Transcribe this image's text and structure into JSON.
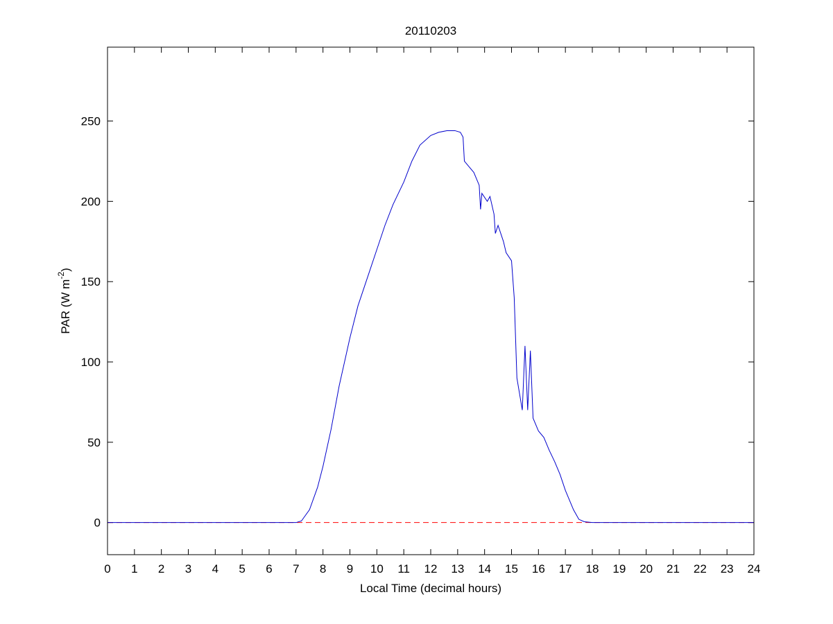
{
  "chart_data": {
    "type": "line",
    "title": "20110203",
    "xlabel": "Local Time (decimal hours)",
    "ylabel": {
      "text": "PAR (W m",
      "superscript": "-2",
      "suffix": ")"
    },
    "xlim": [
      0,
      24
    ],
    "ylim": [
      -20,
      296
    ],
    "xticks": [
      0,
      1,
      2,
      3,
      4,
      5,
      6,
      7,
      8,
      9,
      10,
      11,
      12,
      13,
      14,
      15,
      16,
      17,
      18,
      19,
      20,
      21,
      22,
      23,
      24
    ],
    "yticks": [
      0,
      50,
      100,
      150,
      200,
      250
    ],
    "grid": false,
    "x": [
      0,
      7,
      7.2,
      7.5,
      7.8,
      8,
      8.3,
      8.6,
      9,
      9.3,
      9.5,
      9.8,
      10,
      10.3,
      10.6,
      11,
      11.3,
      11.6,
      12,
      12.3,
      12.6,
      12.9,
      13.1,
      13.2,
      13.25,
      13.4,
      13.6,
      13.8,
      13.85,
      13.9,
      14.1,
      14.2,
      14.35,
      14.4,
      14.5,
      14.7,
      14.8,
      15,
      15.1,
      15.2,
      15.3,
      15.4,
      15.5,
      15.6,
      15.7,
      15.8,
      16,
      16.2,
      16.4,
      16.6,
      16.8,
      17,
      17.3,
      17.5,
      17.7,
      18,
      24
    ],
    "series": [
      {
        "color": "#0000cc",
        "values": [
          0,
          0,
          1,
          8,
          22,
          35,
          58,
          85,
          115,
          135,
          145,
          160,
          170,
          185,
          198,
          212,
          225,
          235,
          241,
          243,
          244,
          244,
          243,
          240,
          225,
          222,
          218,
          210,
          195,
          205,
          200,
          203,
          192,
          180,
          185,
          175,
          168,
          163,
          140,
          90,
          80,
          70,
          110,
          70,
          107,
          65,
          57,
          53,
          45,
          38,
          30,
          20,
          8,
          2,
          0.5,
          0,
          0
        ]
      }
    ],
    "reference_line": {
      "value": 0,
      "color": "#ff0000",
      "style": "dashed"
    }
  }
}
